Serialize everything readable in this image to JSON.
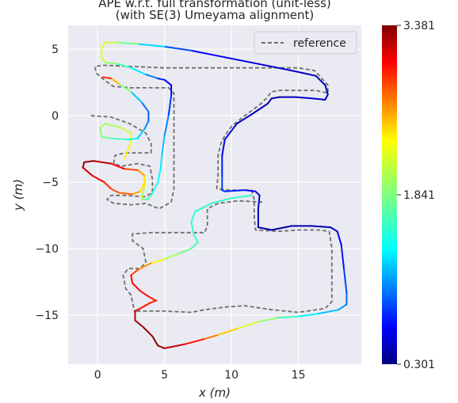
{
  "chart_data": {
    "type": "line",
    "title_line1": "APE w.r.t. full transformation (unit-less)",
    "title_line2": "(with SE(3) Umeyama alignment)",
    "xlabel": "x (m)",
    "ylabel": "y (m)",
    "xlim": [
      -2.2,
      19.7
    ],
    "ylim": [
      -18.7,
      6.8
    ],
    "xticks": [
      0,
      5,
      10,
      15
    ],
    "yticks": [
      5,
      0,
      -5,
      -10,
      -15
    ],
    "xtick_labels": [
      "0",
      "5",
      "10",
      "15"
    ],
    "ytick_labels": [
      "5",
      "0",
      "−5",
      "−10",
      "−15"
    ],
    "grid": true,
    "legend": {
      "placement": "top-right",
      "entries": [
        {
          "name": "reference",
          "style": "dashed",
          "color": "#6e6e6e"
        }
      ]
    },
    "colorbar": {
      "min": 0.301,
      "max": 3.381,
      "tick_values": [
        3.381,
        1.841,
        0.301
      ],
      "tick_labels": [
        "3.381",
        "1.841",
        "0.301"
      ],
      "colormap": "jet"
    },
    "series": [
      {
        "name": "reference",
        "style": "dashed",
        "color": "#6e6e6e",
        "points": [
          [
            -0.5,
            0.0
          ],
          [
            1.0,
            -0.1
          ],
          [
            2.4,
            -0.6
          ],
          [
            3.6,
            -1.3
          ],
          [
            4.0,
            -2.1
          ],
          [
            4.0,
            -2.8
          ],
          [
            3.0,
            -2.8
          ],
          [
            2.0,
            -2.8
          ],
          [
            1.3,
            -3.0
          ],
          [
            1.2,
            -3.6
          ],
          [
            1.8,
            -3.8
          ],
          [
            3.0,
            -3.6
          ],
          [
            3.9,
            -3.8
          ],
          [
            4.1,
            -4.8
          ],
          [
            4.1,
            -5.8
          ],
          [
            3.5,
            -6.1
          ],
          [
            2.0,
            -6.0
          ],
          [
            1.0,
            -6.0
          ],
          [
            0.7,
            -6.3
          ],
          [
            1.2,
            -6.6
          ],
          [
            2.5,
            -6.7
          ],
          [
            3.6,
            -6.6
          ],
          [
            4.6,
            -7.0
          ],
          [
            5.5,
            -6.5
          ],
          [
            5.7,
            -5.5
          ],
          [
            5.7,
            -3.0
          ],
          [
            5.7,
            0.0
          ],
          [
            5.7,
            1.7
          ],
          [
            5.3,
            2.1
          ],
          [
            4.0,
            2.1
          ],
          [
            2.5,
            2.1
          ],
          [
            1.2,
            2.2
          ],
          [
            0.6,
            2.6
          ],
          [
            -0.1,
            3.2
          ],
          [
            -0.2,
            3.7
          ],
          [
            0.4,
            3.8
          ],
          [
            5.0,
            3.6
          ],
          [
            10.0,
            3.6
          ],
          [
            15.0,
            3.6
          ],
          [
            16.2,
            3.4
          ],
          [
            17.2,
            2.3
          ],
          [
            17.2,
            1.7
          ],
          [
            16.3,
            1.9
          ],
          [
            15.0,
            1.9
          ],
          [
            13.6,
            1.9
          ],
          [
            13.0,
            1.8
          ],
          [
            12.6,
            1.3
          ],
          [
            12.2,
            0.9
          ],
          [
            11.0,
            0.0
          ],
          [
            10.0,
            -0.8
          ],
          [
            9.5,
            -1.5
          ],
          [
            9.2,
            -2.1
          ],
          [
            9.0,
            -3.0
          ],
          [
            9.0,
            -4.5
          ],
          [
            8.9,
            -5.5
          ],
          [
            9.8,
            -5.6
          ],
          [
            11.5,
            -5.6
          ],
          [
            11.7,
            -6.3
          ],
          [
            11.7,
            -7.6
          ],
          [
            11.8,
            -8.6
          ],
          [
            13.5,
            -8.7
          ],
          [
            15.0,
            -8.6
          ],
          [
            16.5,
            -8.6
          ],
          [
            17.3,
            -8.7
          ],
          [
            17.5,
            -10.0
          ],
          [
            17.5,
            -12.0
          ],
          [
            17.5,
            -14.0
          ],
          [
            17.0,
            -14.5
          ],
          [
            15.0,
            -14.8
          ],
          [
            13.0,
            -14.6
          ],
          [
            11.0,
            -14.3
          ],
          [
            9.5,
            -14.4
          ],
          [
            8.0,
            -14.6
          ],
          [
            7.0,
            -14.8
          ],
          [
            5.0,
            -14.7
          ],
          [
            3.0,
            -14.7
          ],
          [
            2.8,
            -14.9
          ],
          [
            2.6,
            -14.0
          ],
          [
            2.5,
            -13.5
          ],
          [
            2.1,
            -13.0
          ],
          [
            1.9,
            -12.0
          ],
          [
            2.3,
            -11.5
          ],
          [
            3.2,
            -11.5
          ],
          [
            3.6,
            -11.0
          ],
          [
            3.4,
            -10.0
          ],
          [
            2.6,
            -9.4
          ],
          [
            2.6,
            -8.9
          ],
          [
            4.0,
            -8.8
          ],
          [
            6.0,
            -8.8
          ],
          [
            8.0,
            -8.8
          ],
          [
            8.2,
            -8.3
          ],
          [
            8.2,
            -7.0
          ],
          [
            9.0,
            -6.6
          ],
          [
            10.5,
            -6.4
          ],
          [
            12.3,
            -6.5
          ]
        ]
      },
      {
        "name": "",
        "style": "solid",
        "colormap_values": true,
        "points": [
          [
            4.4,
            -13.9,
            2.9
          ],
          [
            3.9,
            -14.1,
            2.9
          ],
          [
            3.2,
            -14.5,
            3.0
          ],
          [
            2.8,
            -14.7,
            3.15
          ],
          [
            2.8,
            -15.4,
            3.25
          ],
          [
            3.4,
            -15.9,
            3.3
          ],
          [
            4.1,
            -16.6,
            3.35
          ],
          [
            4.5,
            -17.3,
            3.38
          ],
          [
            5.0,
            -17.5,
            3.3
          ],
          [
            6.5,
            -17.2,
            3.1
          ],
          [
            8.0,
            -16.8,
            2.8
          ],
          [
            9.0,
            -16.5,
            2.5
          ],
          [
            10.5,
            -16.0,
            2.25
          ],
          [
            12.0,
            -15.5,
            2.0
          ],
          [
            13.5,
            -15.2,
            1.8
          ],
          [
            15.0,
            -15.1,
            1.5
          ],
          [
            16.5,
            -14.9,
            1.35
          ],
          [
            18.0,
            -14.6,
            1.2
          ],
          [
            18.6,
            -14.2,
            1.1
          ],
          [
            18.6,
            -13.3,
            0.95
          ],
          [
            18.4,
            -11.5,
            0.8
          ],
          [
            18.2,
            -9.7,
            0.7
          ],
          [
            17.9,
            -8.7,
            0.6
          ],
          [
            17.4,
            -8.4,
            0.5
          ],
          [
            16.0,
            -8.3,
            0.45
          ],
          [
            14.5,
            -8.3,
            0.4
          ],
          [
            13.0,
            -8.6,
            0.4
          ],
          [
            12.0,
            -8.4,
            0.45
          ],
          [
            12.0,
            -7.0,
            0.5
          ],
          [
            12.1,
            -6.0,
            0.55
          ],
          [
            11.8,
            -5.7,
            0.6
          ],
          [
            11.0,
            -5.6,
            0.75
          ],
          [
            9.5,
            -5.7,
            0.85
          ],
          [
            9.3,
            -5.6,
            0.9
          ],
          [
            9.3,
            -4.5,
            0.85
          ],
          [
            9.3,
            -3.0,
            0.7
          ],
          [
            9.5,
            -1.8,
            0.6
          ],
          [
            10.4,
            -0.6,
            0.55
          ],
          [
            11.5,
            0.1,
            0.5
          ],
          [
            12.7,
            0.9,
            0.45
          ],
          [
            13.0,
            1.3,
            0.45
          ],
          [
            13.6,
            1.4,
            0.45
          ],
          [
            14.8,
            1.4,
            0.5
          ],
          [
            16.0,
            1.3,
            0.55
          ],
          [
            17.0,
            1.2,
            0.55
          ],
          [
            17.2,
            1.6,
            0.5
          ],
          [
            17.0,
            2.3,
            0.45
          ],
          [
            16.3,
            3.0,
            0.45
          ],
          [
            14.5,
            3.4,
            0.5
          ],
          [
            12.0,
            3.9,
            0.55
          ],
          [
            9.5,
            4.4,
            0.6
          ],
          [
            7.0,
            4.9,
            0.75
          ],
          [
            5.0,
            5.2,
            1.1
          ],
          [
            3.0,
            5.4,
            1.6
          ],
          [
            1.5,
            5.5,
            2.0
          ],
          [
            0.6,
            5.5,
            2.1
          ],
          [
            0.3,
            5.1,
            2.2
          ],
          [
            0.3,
            4.4,
            2.15
          ],
          [
            0.6,
            4.0,
            2.0
          ],
          [
            1.5,
            3.9,
            1.75
          ],
          [
            2.5,
            3.6,
            1.55
          ],
          [
            3.6,
            3.1,
            1.25
          ],
          [
            4.5,
            2.8,
            0.9
          ],
          [
            5.0,
            2.7,
            0.7
          ],
          [
            5.5,
            2.3,
            0.6
          ],
          [
            5.5,
            1.5,
            0.7
          ],
          [
            5.3,
            0.0,
            0.95
          ],
          [
            5.0,
            -1.5,
            1.2
          ],
          [
            4.8,
            -3.0,
            1.35
          ],
          [
            4.7,
            -4.0,
            1.45
          ],
          [
            4.5,
            -5.0,
            1.5
          ],
          [
            4.0,
            -6.0,
            1.6
          ],
          [
            3.7,
            -6.3,
            1.7
          ],
          [
            3.3,
            -6.3,
            1.8
          ]
        ]
      },
      {
        "name": "",
        "style": "solid",
        "colormap_values": true,
        "points": [
          [
            3.3,
            -6.3,
            1.85
          ],
          [
            3.5,
            -5.3,
            2.2
          ],
          [
            3.5,
            -4.5,
            2.4
          ],
          [
            3.0,
            -4.1,
            2.6
          ],
          [
            2.0,
            -4.0,
            2.9
          ],
          [
            1.0,
            -3.6,
            3.1
          ],
          [
            -0.3,
            -3.4,
            3.3
          ],
          [
            -1.0,
            -3.5,
            3.35
          ],
          [
            -1.1,
            -3.9,
            3.3
          ],
          [
            -0.4,
            -4.5,
            3.1
          ],
          [
            0.5,
            -5.0,
            2.95
          ],
          [
            1.0,
            -5.5,
            2.8
          ],
          [
            1.6,
            -5.8,
            2.75
          ],
          [
            2.6,
            -5.9,
            2.65
          ],
          [
            3.2,
            -5.7,
            2.4
          ],
          [
            3.5,
            -5.0,
            2.2
          ]
        ]
      },
      {
        "name": "",
        "style": "solid",
        "colormap_values": true,
        "points": [
          [
            2.0,
            -3.2,
            2.3
          ],
          [
            2.5,
            -2.0,
            2.2
          ],
          [
            2.5,
            -1.3,
            2.1
          ],
          [
            1.7,
            -0.9,
            2.0
          ],
          [
            0.6,
            -0.6,
            1.95
          ],
          [
            0.2,
            -0.9,
            1.95
          ],
          [
            0.3,
            -1.6,
            1.85
          ],
          [
            1.0,
            -1.7,
            1.75
          ],
          [
            2.3,
            -1.8,
            1.6
          ],
          [
            3.0,
            -1.7,
            1.4
          ],
          [
            3.5,
            -1.0,
            1.2
          ],
          [
            3.8,
            -0.4,
            1.0
          ],
          [
            3.8,
            0.3,
            0.95
          ],
          [
            3.3,
            1.0,
            1.1
          ],
          [
            2.5,
            1.8,
            1.5
          ],
          [
            1.6,
            2.4,
            2.2
          ],
          [
            1.0,
            2.8,
            2.7
          ],
          [
            0.4,
            2.9,
            3.0
          ]
        ]
      },
      {
        "name": "",
        "style": "solid",
        "colormap_values": true,
        "points": [
          [
            11.5,
            -6.0,
            1.6
          ],
          [
            10.0,
            -6.2,
            1.6
          ],
          [
            8.5,
            -6.6,
            1.6
          ],
          [
            7.3,
            -7.2,
            1.55
          ],
          [
            7.0,
            -8.0,
            1.6
          ],
          [
            7.2,
            -9.0,
            1.65
          ],
          [
            7.5,
            -9.5,
            1.6
          ],
          [
            7.0,
            -10.0,
            1.7
          ],
          [
            6.0,
            -10.4,
            1.85
          ],
          [
            5.0,
            -10.8,
            2.1
          ],
          [
            4.0,
            -11.1,
            2.4
          ],
          [
            3.0,
            -11.6,
            2.7
          ],
          [
            2.5,
            -12.0,
            2.9
          ],
          [
            2.6,
            -12.6,
            3.05
          ],
          [
            3.2,
            -13.2,
            3.0
          ],
          [
            3.8,
            -13.6,
            2.95
          ],
          [
            4.3,
            -13.9,
            2.9
          ]
        ]
      }
    ]
  }
}
